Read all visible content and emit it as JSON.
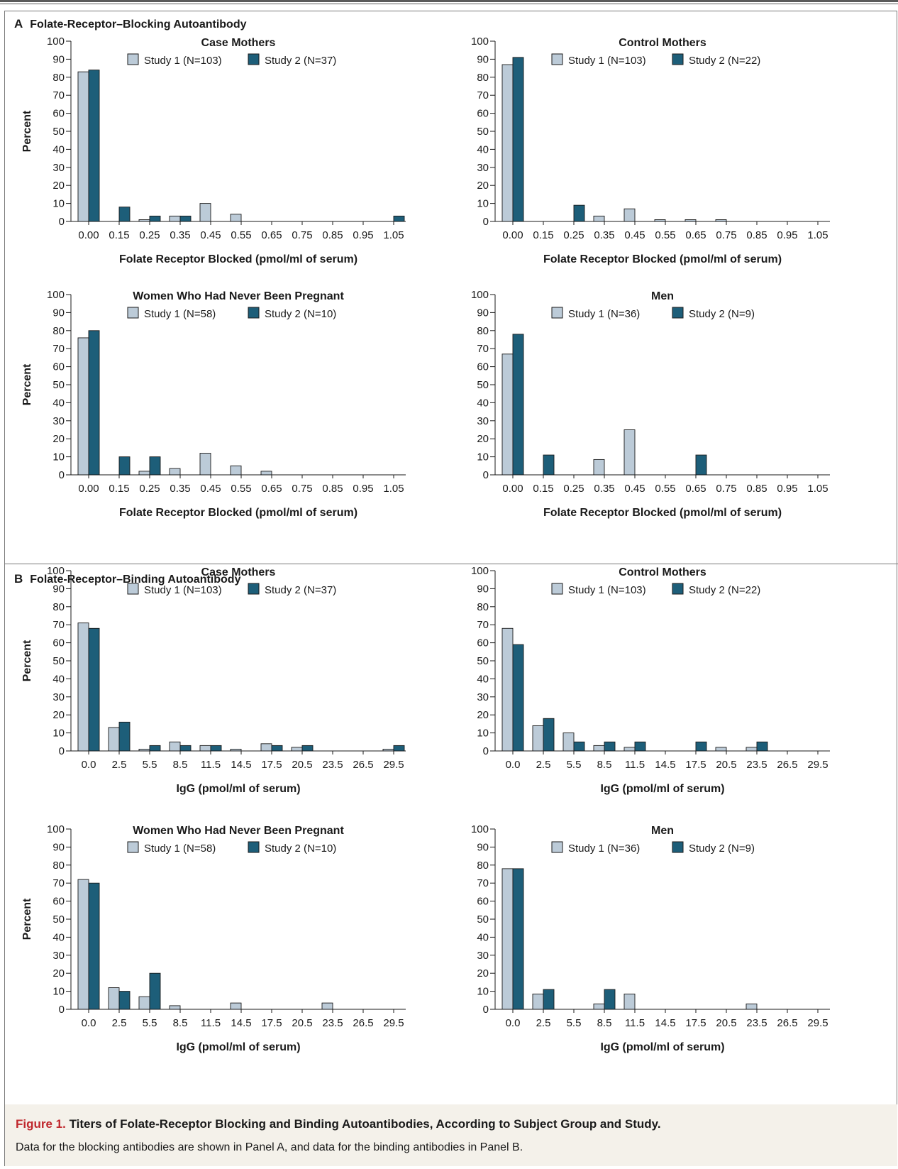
{
  "colors": {
    "study1": "#bccbd8",
    "study2": "#1d5e79",
    "caption_figure": "#c0282d",
    "caption_bg": "#f4f1ea"
  },
  "panels": {
    "a": {
      "letter": "A",
      "title": "Folate-Receptor–Blocking Autoantibody"
    },
    "b": {
      "letter": "B",
      "title": "Folate-Receptor–Binding Autoantibody"
    }
  },
  "caption": {
    "figure_label": "Figure 1.",
    "title": "Titers of Folate-Receptor Blocking and Binding Autoantibodies, According to Subject Group and Study.",
    "text": "Data for the blocking antibodies are shown in Panel A, and data for the binding antibodies in Panel B."
  },
  "chart_data": [
    {
      "panel": "A",
      "type": "bar",
      "title": "Case Mothers",
      "xlabel": "Folate Receptor Blocked (pmol/ml of serum)",
      "ylabel": "Percent",
      "ylim": [
        0,
        100
      ],
      "yticks": [
        "0",
        "10",
        "20",
        "30",
        "40",
        "50",
        "60",
        "70",
        "80",
        "90",
        "100"
      ],
      "categories": [
        "0.00",
        "0.15",
        "0.25",
        "0.35",
        "0.45",
        "0.55",
        "0.65",
        "0.75",
        "0.85",
        "0.95",
        "1.05"
      ],
      "legend_position": "top",
      "series": [
        {
          "name": "Study 1 (N=103)",
          "values": [
            83,
            0,
            1,
            3,
            10,
            4,
            0,
            0,
            0,
            0,
            0
          ]
        },
        {
          "name": "Study 2 (N=37)",
          "values": [
            84,
            8,
            3,
            3,
            0,
            0,
            0,
            0,
            0,
            0,
            3
          ]
        }
      ]
    },
    {
      "panel": "A",
      "type": "bar",
      "title": "Control Mothers",
      "xlabel": "Folate Receptor Blocked (pmol/ml of serum)",
      "ylabel": "",
      "ylim": [
        0,
        100
      ],
      "yticks": [
        "0",
        "10",
        "20",
        "30",
        "40",
        "50",
        "60",
        "70",
        "80",
        "90",
        "100"
      ],
      "categories": [
        "0.00",
        "0.15",
        "0.25",
        "0.35",
        "0.45",
        "0.55",
        "0.65",
        "0.75",
        "0.85",
        "0.95",
        "1.05"
      ],
      "legend_position": "top",
      "series": [
        {
          "name": "Study 1 (N=103)",
          "values": [
            87,
            0,
            0,
            3,
            7,
            1,
            1,
            1,
            0,
            0,
            0
          ]
        },
        {
          "name": "Study 2 (N=22)",
          "values": [
            91,
            0,
            9,
            0,
            0,
            0,
            0,
            0,
            0,
            0,
            0
          ]
        }
      ]
    },
    {
      "panel": "A",
      "type": "bar",
      "title": "Women Who Had Never Been Pregnant",
      "xlabel": "Folate Receptor Blocked (pmol/ml of serum)",
      "ylabel": "Percent",
      "ylim": [
        0,
        100
      ],
      "yticks": [
        "0",
        "10",
        "20",
        "30",
        "40",
        "50",
        "60",
        "70",
        "80",
        "90",
        "100"
      ],
      "categories": [
        "0.00",
        "0.15",
        "0.25",
        "0.35",
        "0.45",
        "0.55",
        "0.65",
        "0.75",
        "0.85",
        "0.95",
        "1.05"
      ],
      "legend_position": "top",
      "series": [
        {
          "name": "Study 1 (N=58)",
          "values": [
            76,
            0,
            2,
            3.5,
            12,
            5,
            2,
            0,
            0,
            0,
            0
          ]
        },
        {
          "name": "Study 2 (N=10)",
          "values": [
            80,
            10,
            10,
            0,
            0,
            0,
            0,
            0,
            0,
            0,
            0
          ]
        }
      ]
    },
    {
      "panel": "A",
      "type": "bar",
      "title": "Men",
      "xlabel": "Folate Receptor Blocked (pmol/ml of serum)",
      "ylabel": "",
      "ylim": [
        0,
        100
      ],
      "yticks": [
        "0",
        "10",
        "20",
        "30",
        "40",
        "50",
        "60",
        "70",
        "80",
        "90",
        "100"
      ],
      "categories": [
        "0.00",
        "0.15",
        "0.25",
        "0.35",
        "0.45",
        "0.55",
        "0.65",
        "0.75",
        "0.85",
        "0.95",
        "1.05"
      ],
      "legend_position": "top",
      "series": [
        {
          "name": "Study 1 (N=36)",
          "values": [
            67,
            0,
            0,
            8.5,
            25,
            0,
            0,
            0,
            0,
            0,
            0
          ]
        },
        {
          "name": "Study 2 (N=9)",
          "values": [
            78,
            11,
            0,
            0,
            0,
            0,
            11,
            0,
            0,
            0,
            0
          ]
        }
      ]
    },
    {
      "panel": "B",
      "type": "bar",
      "title": "Case Mothers",
      "xlabel": "IgG (pmol/ml of serum)",
      "ylabel": "Percent",
      "ylim": [
        0,
        100
      ],
      "yticks": [
        "0",
        "10",
        "20",
        "30",
        "40",
        "50",
        "60",
        "70",
        "80",
        "90",
        "100"
      ],
      "categories": [
        "0.0",
        "2.5",
        "5.5",
        "8.5",
        "11.5",
        "14.5",
        "17.5",
        "20.5",
        "23.5",
        "26.5",
        "29.5"
      ],
      "legend_position": "top",
      "series": [
        {
          "name": "Study 1 (N=103)",
          "values": [
            71,
            13,
            1,
            5,
            3,
            1,
            4,
            2,
            0,
            0,
            1
          ]
        },
        {
          "name": "Study 2 (N=37)",
          "values": [
            68,
            16,
            3,
            3,
            3,
            0,
            3,
            3,
            0,
            0,
            3
          ]
        }
      ]
    },
    {
      "panel": "B",
      "type": "bar",
      "title": "Control Mothers",
      "xlabel": "IgG (pmol/ml of serum)",
      "ylabel": "",
      "ylim": [
        0,
        100
      ],
      "yticks": [
        "0",
        "10",
        "20",
        "30",
        "40",
        "50",
        "60",
        "70",
        "80",
        "90",
        "100"
      ],
      "categories": [
        "0.0",
        "2.5",
        "5.5",
        "8.5",
        "11.5",
        "14.5",
        "17.5",
        "20.5",
        "23.5",
        "26.5",
        "29.5"
      ],
      "legend_position": "top",
      "series": [
        {
          "name": "Study 1 (N=103)",
          "values": [
            68,
            14,
            10,
            3,
            2,
            0,
            0,
            2,
            2,
            0,
            0
          ]
        },
        {
          "name": "Study 2 (N=22)",
          "values": [
            59,
            18,
            5,
            5,
            5,
            0,
            5,
            0,
            5,
            0,
            0
          ]
        }
      ]
    },
    {
      "panel": "B",
      "type": "bar",
      "title": "Women Who Had Never Been Pregnant",
      "xlabel": "IgG (pmol/ml of serum)",
      "ylabel": "Percent",
      "ylim": [
        0,
        100
      ],
      "yticks": [
        "0",
        "10",
        "20",
        "30",
        "40",
        "50",
        "60",
        "70",
        "80",
        "90",
        "100"
      ],
      "categories": [
        "0.0",
        "2.5",
        "5.5",
        "8.5",
        "11.5",
        "14.5",
        "17.5",
        "20.5",
        "23.5",
        "26.5",
        "29.5"
      ],
      "legend_position": "top",
      "series": [
        {
          "name": "Study 1 (N=58)",
          "values": [
            72,
            12,
            7,
            2,
            0,
            3.5,
            0,
            0,
            3.5,
            0,
            0
          ]
        },
        {
          "name": "Study 2 (N=10)",
          "values": [
            70,
            10,
            20,
            0,
            0,
            0,
            0,
            0,
            0,
            0,
            0
          ]
        }
      ]
    },
    {
      "panel": "B",
      "type": "bar",
      "title": "Men",
      "xlabel": "IgG (pmol/ml of serum)",
      "ylabel": "",
      "ylim": [
        0,
        100
      ],
      "yticks": [
        "0",
        "10",
        "20",
        "30",
        "40",
        "50",
        "60",
        "70",
        "80",
        "90",
        "100"
      ],
      "categories": [
        "0.0",
        "2.5",
        "5.5",
        "8.5",
        "11.5",
        "14.5",
        "17.5",
        "20.5",
        "23.5",
        "26.5",
        "29.5"
      ],
      "legend_position": "top",
      "series": [
        {
          "name": "Study 1 (N=36)",
          "values": [
            78,
            8.5,
            0,
            3,
            8.5,
            0,
            0,
            0,
            3,
            0,
            0
          ]
        },
        {
          "name": "Study 2 (N=9)",
          "values": [
            78,
            11,
            0,
            11,
            0,
            0,
            0,
            0,
            0,
            0,
            0
          ]
        }
      ]
    }
  ]
}
